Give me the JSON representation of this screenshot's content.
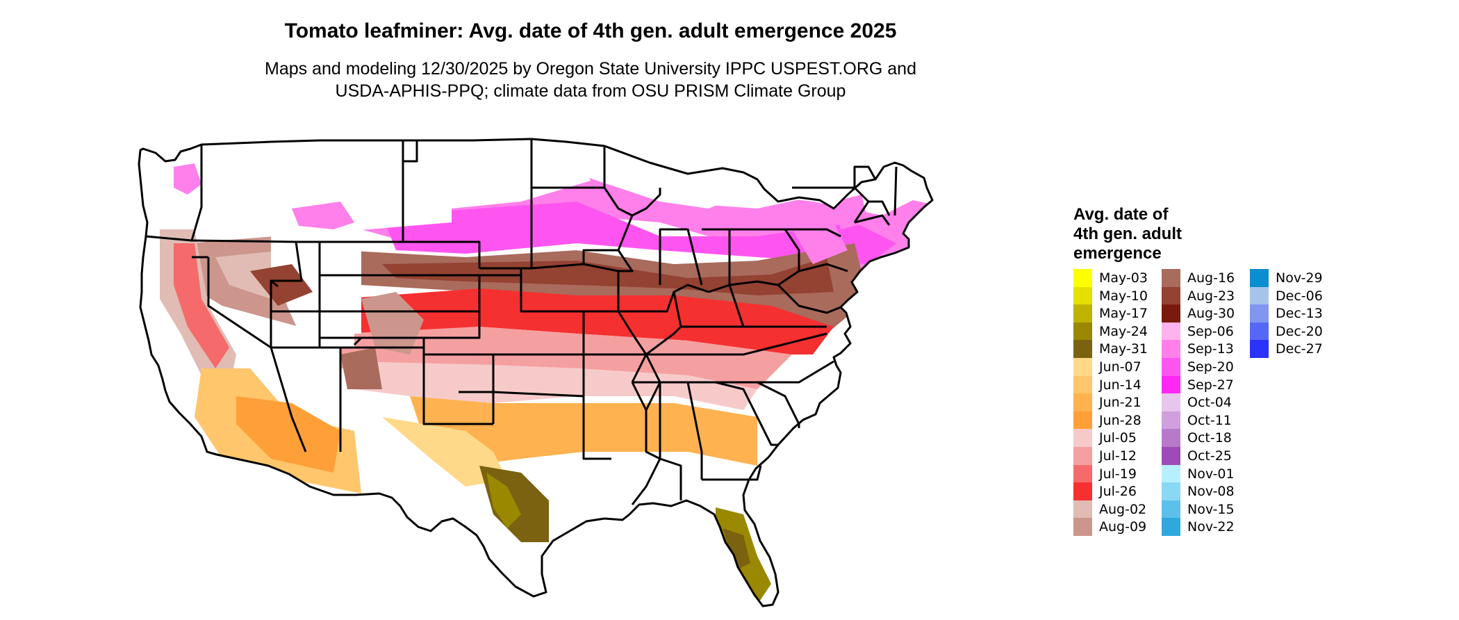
{
  "title": "Tomato leafminer: Avg. date of 4th gen. adult emergence 2025",
  "subtitle_line1": "Maps and modeling 12/30/2025 by Oregon State University IPPC USPEST.ORG and",
  "subtitle_line2": "USDA-APHIS-PPQ; climate data from OSU PRISM Climate Group",
  "legend": {
    "title_lines": [
      "Avg. date of",
      "4th gen. adult",
      "emergence"
    ],
    "columns": [
      [
        {
          "label": "May-03",
          "color": "#ffff00"
        },
        {
          "label": "May-10",
          "color": "#e6e000"
        },
        {
          "label": "May-17",
          "color": "#bfb300"
        },
        {
          "label": "May-24",
          "color": "#9a8800"
        },
        {
          "label": "May-31",
          "color": "#7a6210"
        },
        {
          "label": "Jun-07",
          "color": "#ffd98a"
        },
        {
          "label": "Jun-14",
          "color": "#ffc66b"
        },
        {
          "label": "Jun-21",
          "color": "#ffb24f"
        },
        {
          "label": "Jun-28",
          "color": "#ff9f38"
        },
        {
          "label": "Jul-05",
          "color": "#f7caca"
        },
        {
          "label": "Jul-12",
          "color": "#f5a0a0"
        },
        {
          "label": "Jul-19",
          "color": "#f56a6a"
        },
        {
          "label": "Jul-26",
          "color": "#f53030"
        },
        {
          "label": "Aug-02",
          "color": "#e0bcb4"
        },
        {
          "label": "Aug-09",
          "color": "#cc968c"
        }
      ],
      [
        {
          "label": "Aug-16",
          "color": "#a96b5c"
        },
        {
          "label": "Aug-23",
          "color": "#944232"
        },
        {
          "label": "Aug-30",
          "color": "#7b1a0c"
        },
        {
          "label": "Sep-06",
          "color": "#ffb3ee"
        },
        {
          "label": "Sep-13",
          "color": "#ff80ea"
        },
        {
          "label": "Sep-20",
          "color": "#ff55f0"
        },
        {
          "label": "Sep-27",
          "color": "#ff28f5"
        },
        {
          "label": "Oct-04",
          "color": "#e6c6ec"
        },
        {
          "label": "Oct-11",
          "color": "#cfa0dc"
        },
        {
          "label": "Oct-18",
          "color": "#b77acb"
        },
        {
          "label": "Oct-25",
          "color": "#9e4ab8"
        },
        {
          "label": "Nov-01",
          "color": "#b8efff"
        },
        {
          "label": "Nov-08",
          "color": "#8ad8f3"
        },
        {
          "label": "Nov-15",
          "color": "#5dc0ea"
        },
        {
          "label": "Nov-22",
          "color": "#2ea8dd"
        }
      ],
      [
        {
          "label": "Nov-29",
          "color": "#0a8ed0"
        },
        {
          "label": "Dec-06",
          "color": "#a6c4ea"
        },
        {
          "label": "Dec-13",
          "color": "#8096ef"
        },
        {
          "label": "Dec-20",
          "color": "#5568f5"
        },
        {
          "label": "Dec-27",
          "color": "#2a32fb"
        }
      ]
    ]
  }
}
